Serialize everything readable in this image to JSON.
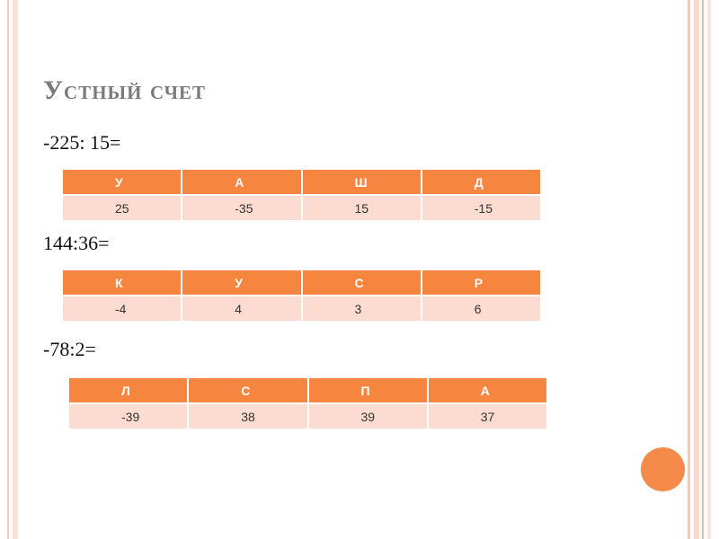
{
  "title": "Устный счет",
  "exercises": [
    {
      "expression": "-225: 15=",
      "table": {
        "header": [
          "У",
          "А",
          "Ш",
          "Д"
        ],
        "values": [
          25,
          -35,
          15,
          -15
        ]
      }
    },
    {
      "expression": "144:36=",
      "table": {
        "header": [
          "К",
          "У",
          "С",
          "Р"
        ],
        "values": [
          -4,
          4,
          3,
          6
        ]
      }
    },
    {
      "expression": "-78:2=",
      "table": {
        "header": [
          "Л",
          "С",
          "П",
          "А"
        ],
        "values": [
          -39,
          38,
          39,
          37
        ]
      }
    }
  ]
}
